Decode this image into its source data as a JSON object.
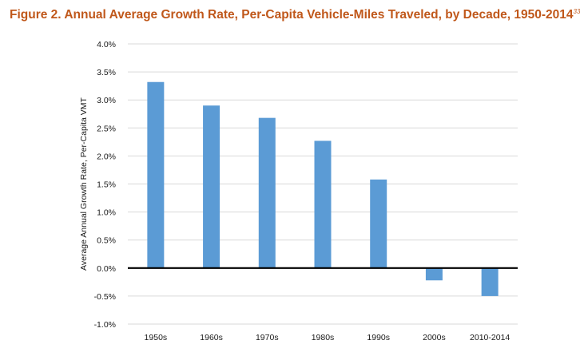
{
  "figure": {
    "title": "Figure 2. Annual Average Growth Rate, Per-Capita Vehicle-Miles Traveled, by Decade, 1950-2014",
    "footnote": "33"
  },
  "colors": {
    "title": "#c0581b",
    "bar": "#5b9bd5",
    "gridline": "#d9d9d9",
    "zero_axis": "#000000"
  },
  "chart_data": {
    "type": "bar",
    "title": "Figure 2. Annual Average Growth Rate, Per-Capita Vehicle-Miles Traveled, by Decade, 1950-2014",
    "xlabel": "",
    "ylabel": "Average Annual Growth Rate, Per-Capita VMT",
    "categories": [
      "1950s",
      "1960s",
      "1970s",
      "1980s",
      "1990s",
      "2000s",
      "2010-2014"
    ],
    "values": [
      3.32,
      2.9,
      2.68,
      2.27,
      1.58,
      -0.22,
      -0.5
    ],
    "ylim": [
      -1.0,
      4.0
    ],
    "yticks": [
      -1.0,
      -0.5,
      0.0,
      0.5,
      1.0,
      1.5,
      2.0,
      2.5,
      3.0,
      3.5,
      4.0
    ],
    "ytick_labels": [
      "-1.0%",
      "-0.5%",
      "0.0%",
      "0.5%",
      "1.0%",
      "1.5%",
      "2.0%",
      "2.5%",
      "3.0%",
      "3.5%",
      "4.0%"
    ],
    "grid": true,
    "legend": "none"
  }
}
